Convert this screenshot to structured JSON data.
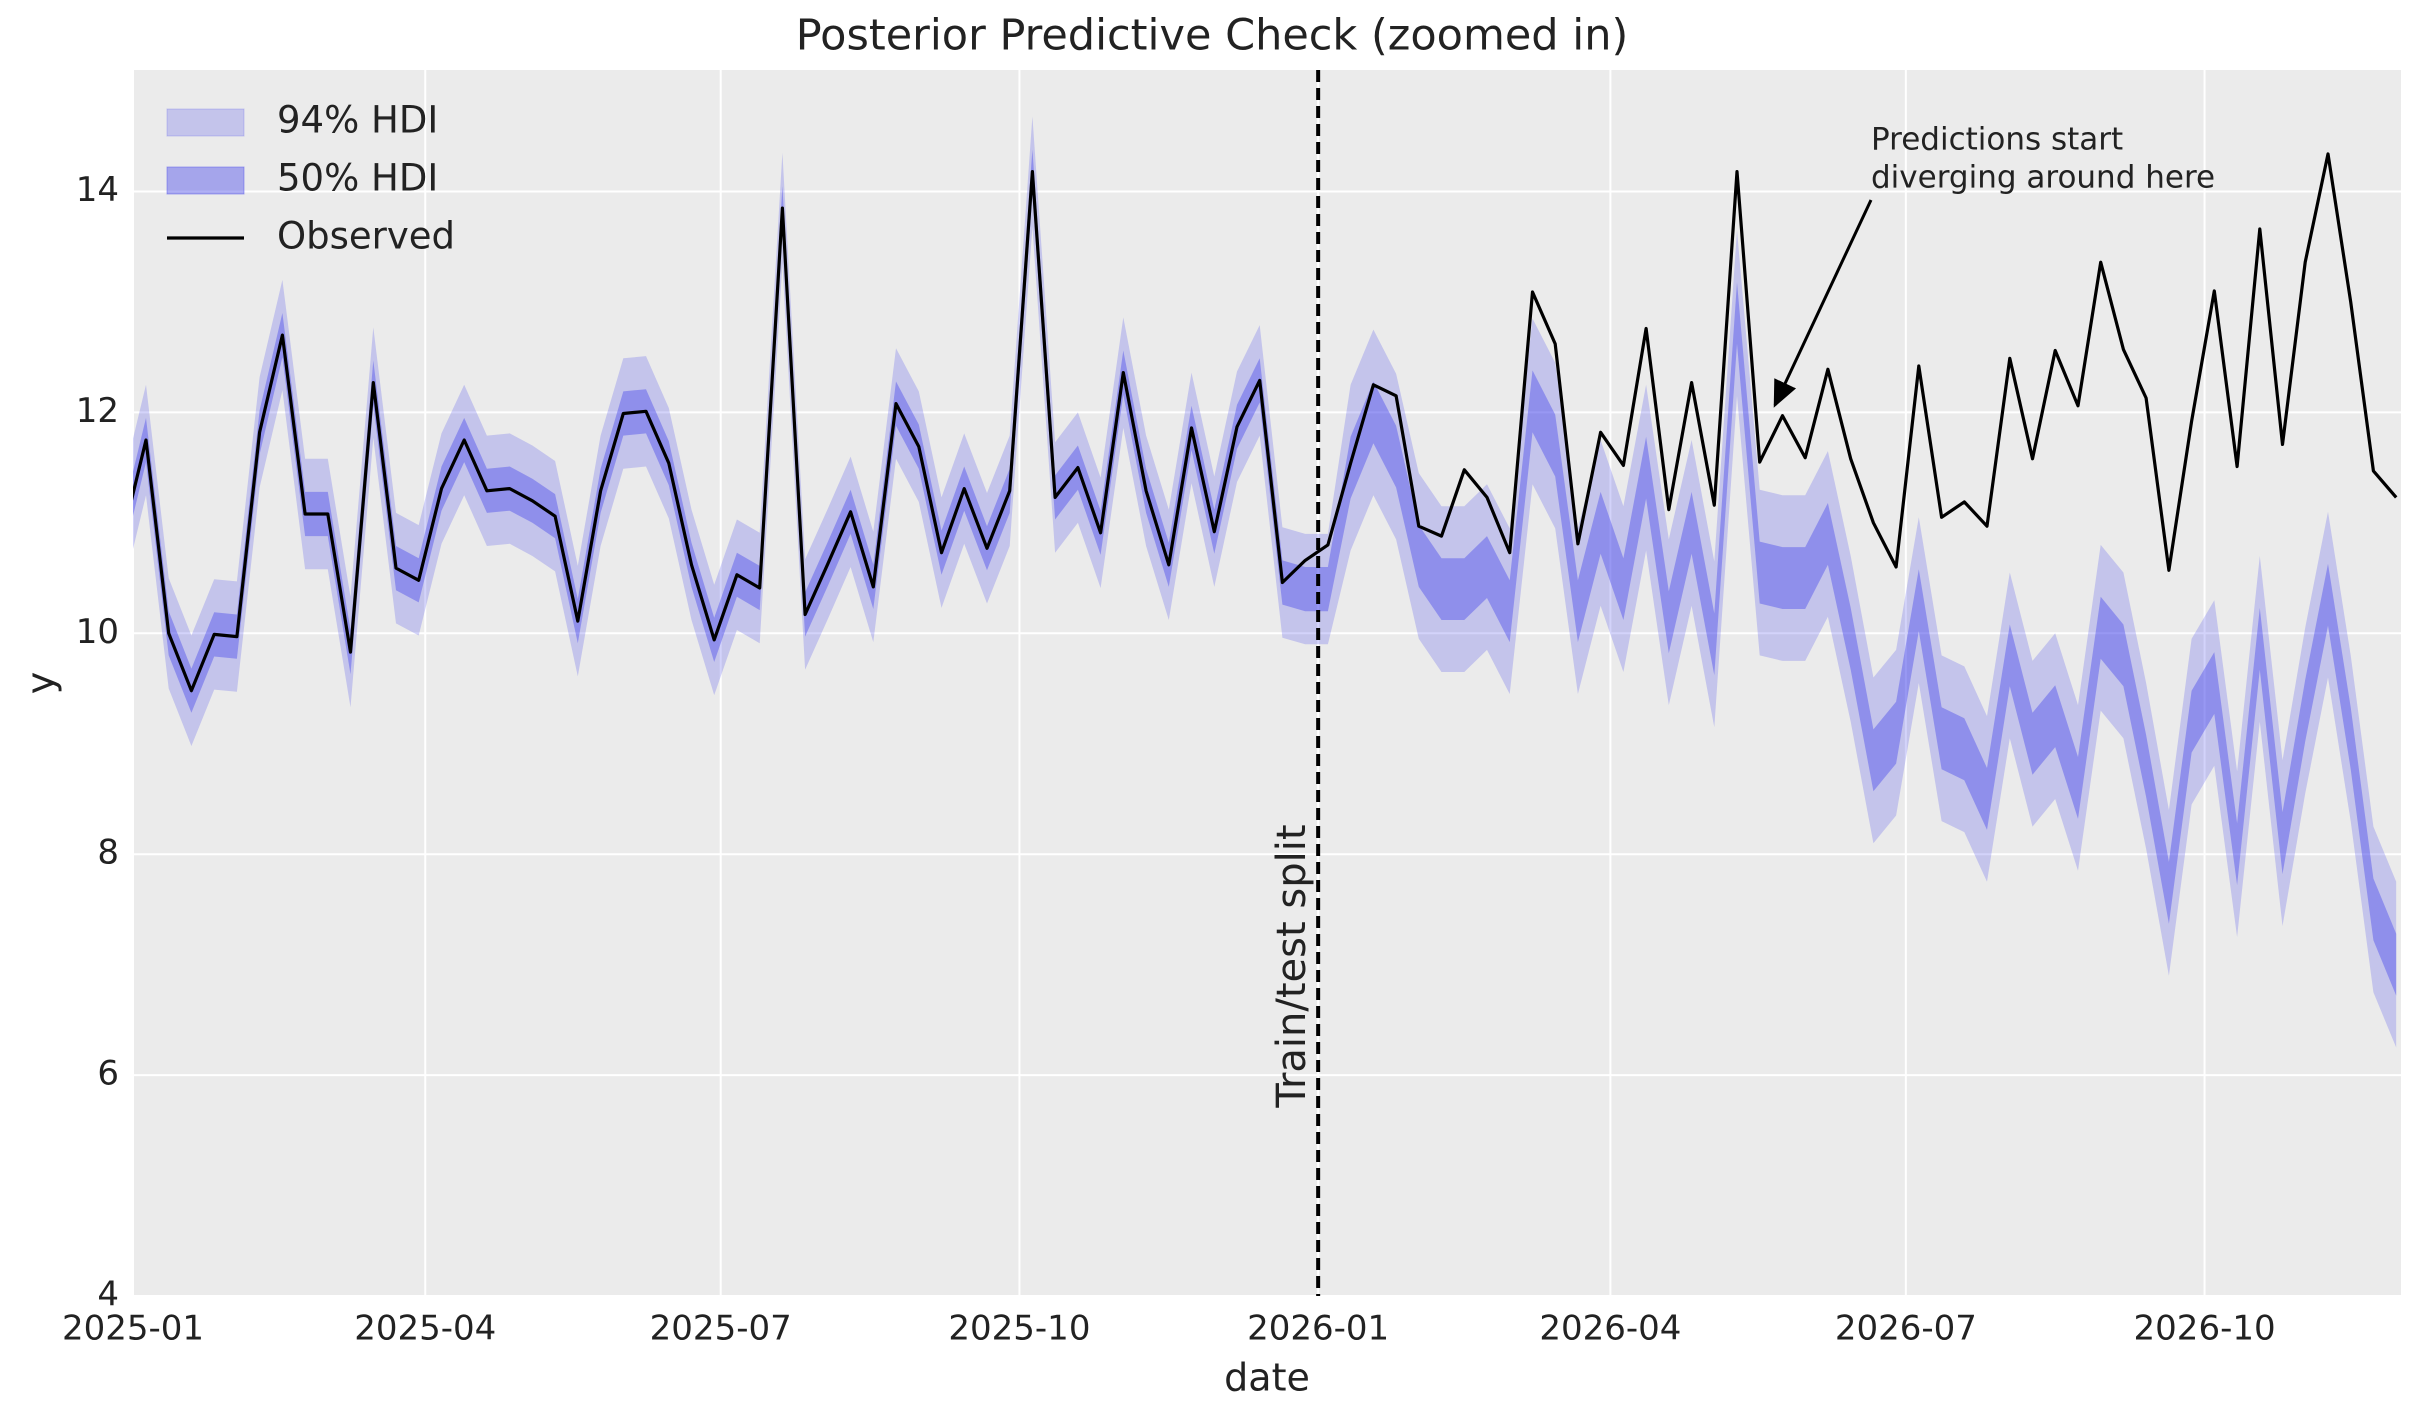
{
  "chart_data": {
    "type": "line",
    "title": "Posterior Predictive Check (zoomed in)",
    "xlabel": "date",
    "ylabel": "y",
    "xticks": [
      "2025-01",
      "2025-04",
      "2025-07",
      "2025-10",
      "2026-01",
      "2026-04",
      "2026-07",
      "2026-10"
    ],
    "ylim": [
      4,
      15.1
    ],
    "yticks": [
      4,
      6,
      8,
      10,
      12,
      14
    ],
    "grid": true,
    "legend": "upper left",
    "split_at": "2026-01",
    "split_label": "Train/test split",
    "annotation": [
      "Predictions start",
      "diverging around here"
    ],
    "bands": [
      {
        "name": "94% HDI",
        "color": "rgba(80,80,235,0.25)",
        "lower": [
          10.4,
          11.25,
          9.5,
          8.98,
          9.49,
          9.47,
          11.32,
          12.2,
          10.58,
          10.58,
          9.33,
          11.77,
          10.09,
          9.98,
          10.81,
          11.25,
          10.79,
          10.81,
          10.7,
          10.56,
          9.61,
          10.79,
          11.49,
          11.51,
          11.04,
          10.12,
          9.44,
          10.03,
          9.91,
          13.35,
          9.67,
          10.13,
          10.6,
          9.92,
          11.58,
          11.19,
          10.23,
          10.81,
          10.27,
          10.79,
          13.68,
          10.73,
          11.0,
          10.41,
          11.86,
          10.79,
          10.12,
          11.36,
          10.42,
          11.37,
          11.79,
          9.96,
          9.9,
          9.9,
          10.75,
          11.25,
          10.85,
          9.95,
          9.65,
          9.65,
          9.85,
          9.45,
          11.35,
          10.95,
          9.45,
          10.25,
          9.65,
          10.75,
          9.35,
          10.25,
          9.15,
          12.15,
          9.8,
          9.75,
          9.75,
          10.15,
          9.2,
          8.1,
          8.35,
          9.55,
          8.3,
          8.2,
          7.75,
          9.05,
          8.25,
          8.5,
          7.85,
          9.3,
          9.05,
          8.05,
          6.9,
          8.45,
          8.8,
          7.25,
          9.2,
          7.35,
          8.55,
          9.6,
          8.3,
          6.75,
          6.25
        ],
        "upper": [
          11.4,
          12.25,
          10.5,
          9.98,
          10.49,
          10.47,
          12.32,
          13.2,
          11.58,
          11.58,
          10.33,
          12.77,
          11.09,
          10.98,
          11.81,
          12.25,
          11.79,
          11.81,
          11.7,
          11.56,
          10.61,
          11.79,
          12.49,
          12.51,
          12.04,
          11.12,
          10.44,
          11.03,
          10.91,
          14.35,
          10.67,
          11.13,
          11.6,
          10.92,
          12.58,
          12.19,
          11.23,
          11.81,
          11.27,
          11.79,
          14.68,
          11.73,
          12.0,
          11.41,
          12.86,
          11.79,
          11.12,
          12.36,
          11.42,
          12.37,
          12.79,
          10.96,
          10.9,
          10.9,
          12.25,
          12.75,
          12.35,
          11.45,
          11.15,
          11.15,
          11.35,
          10.95,
          12.85,
          12.45,
          10.95,
          11.75,
          11.15,
          12.25,
          10.85,
          11.75,
          10.65,
          13.65,
          11.3,
          11.25,
          11.25,
          11.65,
          10.7,
          9.6,
          9.85,
          11.05,
          9.8,
          9.7,
          9.25,
          10.55,
          9.75,
          10.0,
          9.35,
          10.8,
          10.55,
          9.55,
          8.4,
          9.95,
          10.3,
          8.75,
          10.7,
          8.85,
          10.05,
          11.1,
          9.8,
          8.25,
          7.75
        ]
      },
      {
        "name": "50% HDI",
        "color": "rgba(80,80,235,0.45)",
        "lower": [
          10.7,
          11.55,
          9.8,
          9.28,
          9.79,
          9.77,
          11.62,
          12.5,
          10.88,
          10.88,
          9.63,
          12.07,
          10.39,
          10.28,
          11.11,
          11.55,
          11.09,
          11.11,
          11.0,
          10.86,
          9.91,
          11.09,
          11.79,
          11.81,
          11.34,
          10.42,
          9.74,
          10.33,
          10.21,
          13.65,
          9.97,
          10.43,
          10.9,
          10.22,
          11.88,
          11.49,
          10.53,
          11.11,
          10.57,
          11.09,
          13.98,
          11.03,
          11.3,
          10.71,
          12.16,
          11.09,
          10.42,
          11.66,
          10.72,
          11.67,
          12.09,
          10.26,
          10.2,
          10.2,
          11.22,
          11.72,
          11.32,
          10.42,
          10.12,
          10.12,
          10.32,
          9.92,
          11.82,
          11.42,
          9.92,
          10.72,
          10.12,
          11.22,
          9.82,
          10.72,
          9.62,
          12.62,
          10.27,
          10.22,
          10.22,
          10.62,
          9.67,
          8.57,
          8.82,
          10.02,
          8.77,
          8.67,
          8.22,
          9.52,
          8.72,
          8.97,
          8.32,
          9.77,
          9.52,
          8.52,
          7.37,
          8.92,
          9.27,
          7.72,
          9.67,
          7.82,
          9.02,
          10.07,
          8.77,
          7.22,
          6.72
        ],
        "upper": [
          11.1,
          11.95,
          10.2,
          9.68,
          10.19,
          10.17,
          12.02,
          12.9,
          11.28,
          11.28,
          10.03,
          12.47,
          10.79,
          10.68,
          11.51,
          11.95,
          11.49,
          11.51,
          11.4,
          11.26,
          10.31,
          11.49,
          12.19,
          12.21,
          11.74,
          10.82,
          10.14,
          10.73,
          10.61,
          14.05,
          10.37,
          10.83,
          11.3,
          10.62,
          12.28,
          11.89,
          10.93,
          11.51,
          10.97,
          11.49,
          14.38,
          11.43,
          11.7,
          11.11,
          12.56,
          11.49,
          10.82,
          12.06,
          11.12,
          12.07,
          12.49,
          10.66,
          10.6,
          10.6,
          11.78,
          12.28,
          11.88,
          10.98,
          10.68,
          10.68,
          10.88,
          10.48,
          12.38,
          11.98,
          10.48,
          11.28,
          10.68,
          11.78,
          10.38,
          11.28,
          10.18,
          13.18,
          10.83,
          10.78,
          10.78,
          11.18,
          10.23,
          9.13,
          9.38,
          10.58,
          9.33,
          9.23,
          8.78,
          10.08,
          9.28,
          9.53,
          8.88,
          10.33,
          10.08,
          9.08,
          7.93,
          9.48,
          9.83,
          8.28,
          10.23,
          8.38,
          9.58,
          10.63,
          9.33,
          7.78,
          7.28
        ]
      }
    ],
    "series": [
      {
        "name": "Observed",
        "color": "#000000",
        "values": [
          10.9,
          11.75,
          10.0,
          9.48,
          9.99,
          9.97,
          11.82,
          12.7,
          11.08,
          11.08,
          9.83,
          12.27,
          10.59,
          10.48,
          11.31,
          11.75,
          11.29,
          11.31,
          11.2,
          11.06,
          10.11,
          11.29,
          11.99,
          12.01,
          11.54,
          10.62,
          9.94,
          10.53,
          10.41,
          13.85,
          10.17,
          10.63,
          11.1,
          10.42,
          12.08,
          11.69,
          10.73,
          11.31,
          10.77,
          11.29,
          14.18,
          11.23,
          11.5,
          10.91,
          12.36,
          11.29,
          10.62,
          11.86,
          10.92,
          11.87,
          12.29,
          10.46,
          10.66,
          10.8,
          11.54,
          12.25,
          12.15,
          10.97,
          10.88,
          11.48,
          11.23,
          10.73,
          13.09,
          12.62,
          10.81,
          11.82,
          11.52,
          12.76,
          11.12,
          12.27,
          11.16,
          14.18,
          11.55,
          11.97,
          11.59,
          12.39,
          11.58,
          11.0,
          10.6,
          12.42,
          11.05,
          11.19,
          10.97,
          12.49,
          11.58,
          12.56,
          12.06,
          13.36,
          12.57,
          12.13,
          10.57,
          11.92,
          13.1,
          11.51,
          13.66,
          11.71,
          13.36,
          14.34,
          13.0,
          11.47,
          11.23
        ]
      }
    ]
  }
}
